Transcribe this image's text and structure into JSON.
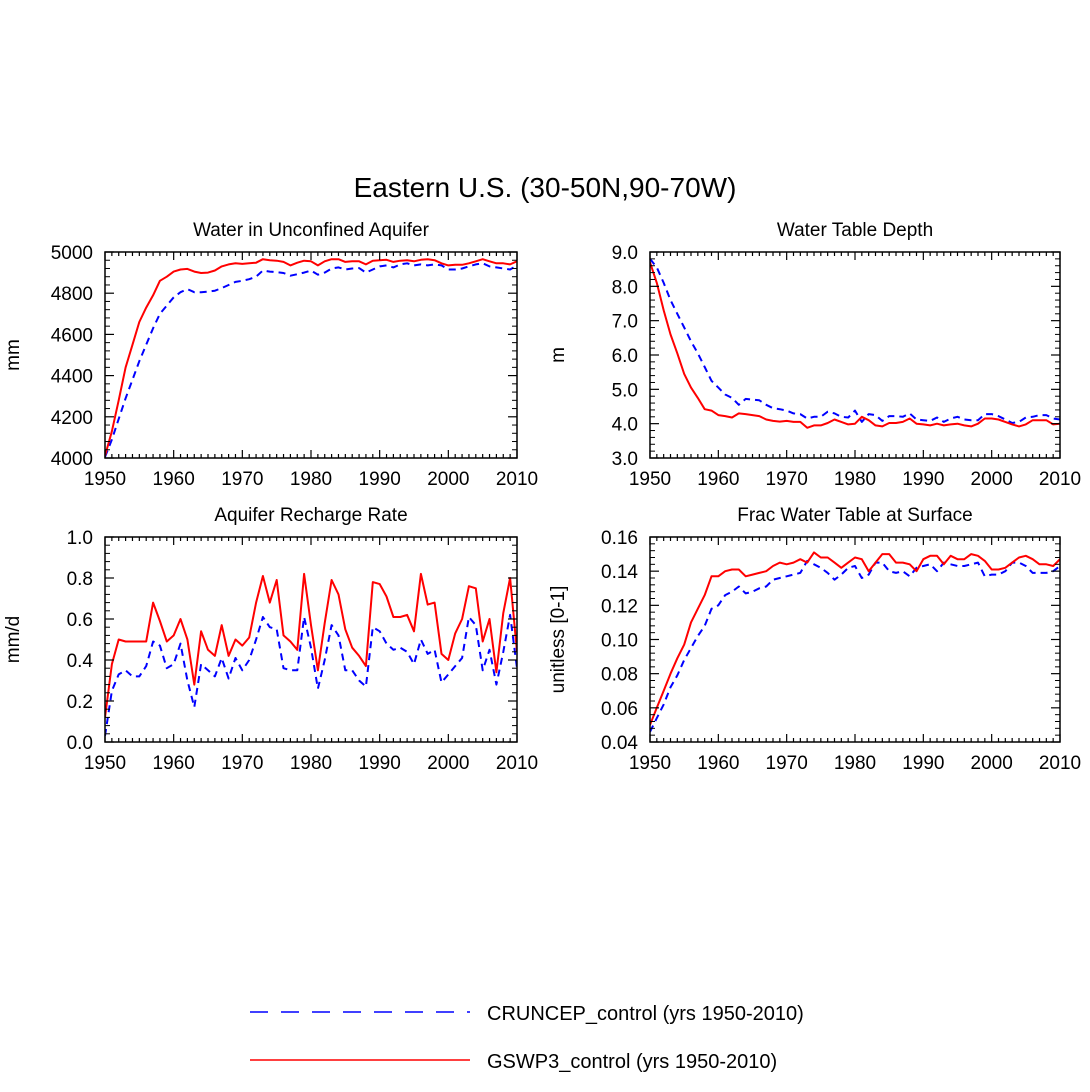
{
  "page_title": "Eastern U.S. (30-50N,90-70W)",
  "legend": [
    {
      "label": "CRUNCEP_control (yrs 1950-2010)",
      "color": "#0000ff",
      "style": "dashed"
    },
    {
      "label": "GSWP3_control (yrs 1950-2010)",
      "color": "#ff0000",
      "style": "solid"
    }
  ],
  "chart_data": [
    {
      "type": "line",
      "title": "Water in Unconfined Aquifer",
      "ylabel": "mm",
      "xlim": [
        1950,
        2010
      ],
      "ylim": [
        4000,
        5000
      ],
      "xticks": [
        1950,
        1960,
        1970,
        1980,
        1990,
        2000,
        2010
      ],
      "yticks": [
        4000,
        4200,
        4400,
        4600,
        4800,
        5000
      ],
      "ytick_labels": [
        "4000",
        "4200",
        "4400",
        "4600",
        "4800",
        "5000"
      ],
      "series": [
        {
          "name": "CRUNCEP_control (yrs 1950-2010)",
          "color": "#0000ff",
          "dash": true,
          "values": [
            4005,
            4090,
            4190,
            4290,
            4380,
            4470,
            4550,
            4630,
            4700,
            4740,
            4780,
            4805,
            4820,
            4805,
            4805,
            4808,
            4812,
            4825,
            4840,
            4855,
            4860,
            4868,
            4880,
            4910,
            4905,
            4902,
            4898,
            4885,
            4892,
            4900,
            4910,
            4890,
            4900,
            4920,
            4925,
            4915,
            4920,
            4922,
            4900,
            4915,
            4930,
            4935,
            4925,
            4940,
            4945,
            4935,
            4940,
            4935,
            4940,
            4935,
            4915,
            4915,
            4920,
            4930,
            4940,
            4945,
            4930,
            4925,
            4920,
            4915,
            4935
          ]
        },
        {
          "name": "GSWP3_control (yrs 1950-2010)",
          "color": "#ff0000",
          "dash": false,
          "values": [
            4010,
            4130,
            4280,
            4440,
            4550,
            4660,
            4730,
            4790,
            4860,
            4880,
            4905,
            4915,
            4918,
            4905,
            4898,
            4900,
            4910,
            4930,
            4940,
            4945,
            4942,
            4945,
            4948,
            4965,
            4960,
            4958,
            4952,
            4935,
            4948,
            4958,
            4955,
            4935,
            4955,
            4965,
            4965,
            4952,
            4955,
            4955,
            4940,
            4958,
            4960,
            4962,
            4952,
            4958,
            4960,
            4955,
            4962,
            4965,
            4960,
            4945,
            4935,
            4938,
            4938,
            4945,
            4955,
            4965,
            4955,
            4945,
            4945,
            4940,
            4955
          ]
        }
      ]
    },
    {
      "type": "line",
      "title": "Water Table Depth",
      "ylabel": "m",
      "xlim": [
        1950,
        2010
      ],
      "ylim": [
        3.0,
        9.0
      ],
      "xticks": [
        1950,
        1960,
        1970,
        1980,
        1990,
        2000,
        2010
      ],
      "yticks": [
        3,
        4,
        5,
        6,
        7,
        8,
        9
      ],
      "ytick_labels": [
        "3.0",
        "4.0",
        "5.0",
        "6.0",
        "7.0",
        "8.0",
        "9.0"
      ],
      "series": [
        {
          "name": "CRUNCEP_control (yrs 1950-2010)",
          "color": "#0000ff",
          "dash": true,
          "values": [
            8.8,
            8.55,
            8.1,
            7.6,
            7.2,
            6.8,
            6.4,
            6.05,
            5.65,
            5.25,
            5.05,
            4.85,
            4.75,
            4.55,
            4.72,
            4.7,
            4.68,
            4.55,
            4.45,
            4.42,
            4.38,
            4.3,
            4.28,
            4.15,
            4.2,
            4.2,
            4.35,
            4.3,
            4.2,
            4.18,
            4.38,
            4.05,
            4.28,
            4.25,
            4.08,
            4.22,
            4.22,
            4.2,
            4.3,
            4.12,
            4.1,
            4.08,
            4.18,
            4.05,
            4.15,
            4.2,
            4.12,
            4.1,
            4.1,
            4.28,
            4.28,
            4.22,
            4.12,
            4.02,
            4.05,
            4.18,
            4.2,
            4.25,
            4.25,
            4.15,
            4.12
          ]
        },
        {
          "name": "GSWP3_control (yrs 1950-2010)",
          "color": "#ff0000",
          "dash": false,
          "values": [
            8.7,
            8.1,
            7.3,
            6.6,
            6.05,
            5.45,
            5.05,
            4.75,
            4.42,
            4.38,
            4.25,
            4.22,
            4.18,
            4.3,
            4.28,
            4.25,
            4.22,
            4.12,
            4.08,
            4.06,
            4.08,
            4.05,
            4.05,
            3.88,
            3.95,
            3.95,
            4.02,
            4.12,
            4.05,
            3.98,
            4.0,
            4.2,
            4.1,
            3.95,
            3.92,
            4.02,
            4.02,
            4.05,
            4.15,
            4.0,
            3.98,
            3.95,
            4.0,
            3.95,
            3.98,
            4.0,
            3.95,
            3.92,
            4.0,
            4.15,
            4.15,
            4.12,
            4.05,
            3.98,
            3.92,
            3.98,
            4.1,
            4.1,
            4.1,
            3.98,
            4.0
          ]
        }
      ]
    },
    {
      "type": "line",
      "title": "Aquifer Recharge Rate",
      "ylabel": "mm/d",
      "xlim": [
        1950,
        2010
      ],
      "ylim": [
        0.0,
        1.0
      ],
      "xticks": [
        1950,
        1960,
        1970,
        1980,
        1990,
        2000,
        2010
      ],
      "yticks": [
        0,
        0.2,
        0.4,
        0.6,
        0.8,
        1.0
      ],
      "ytick_labels": [
        "0.0",
        "0.2",
        "0.4",
        "0.6",
        "0.8",
        "1.0"
      ],
      "series": [
        {
          "name": "CRUNCEP_control (yrs 1950-2010)",
          "color": "#0000ff",
          "dash": true,
          "values": [
            0.03,
            0.25,
            0.33,
            0.35,
            0.32,
            0.32,
            0.37,
            0.49,
            0.47,
            0.36,
            0.38,
            0.48,
            0.3,
            0.17,
            0.38,
            0.35,
            0.32,
            0.41,
            0.31,
            0.41,
            0.35,
            0.4,
            0.5,
            0.61,
            0.56,
            0.55,
            0.36,
            0.35,
            0.35,
            0.61,
            0.46,
            0.26,
            0.4,
            0.57,
            0.52,
            0.35,
            0.35,
            0.3,
            0.27,
            0.56,
            0.54,
            0.48,
            0.45,
            0.46,
            0.44,
            0.38,
            0.5,
            0.43,
            0.45,
            0.29,
            0.33,
            0.37,
            0.41,
            0.61,
            0.57,
            0.35,
            0.45,
            0.28,
            0.44,
            0.62,
            0.36
          ]
        },
        {
          "name": "GSWP3_control (yrs 1950-2010)",
          "color": "#ff0000",
          "dash": false,
          "values": [
            0.12,
            0.38,
            0.5,
            0.49,
            0.49,
            0.49,
            0.49,
            0.68,
            0.59,
            0.49,
            0.52,
            0.6,
            0.5,
            0.28,
            0.54,
            0.45,
            0.42,
            0.57,
            0.42,
            0.5,
            0.47,
            0.51,
            0.68,
            0.81,
            0.68,
            0.79,
            0.52,
            0.49,
            0.45,
            0.82,
            0.57,
            0.35,
            0.58,
            0.79,
            0.72,
            0.55,
            0.46,
            0.42,
            0.37,
            0.78,
            0.77,
            0.71,
            0.61,
            0.61,
            0.62,
            0.54,
            0.82,
            0.67,
            0.68,
            0.43,
            0.4,
            0.53,
            0.6,
            0.76,
            0.75,
            0.49,
            0.6,
            0.34,
            0.63,
            0.8,
            0.44
          ]
        }
      ]
    },
    {
      "type": "line",
      "title": "Frac Water Table at Surface",
      "ylabel": "unitless [0-1]",
      "xlim": [
        1950,
        2010
      ],
      "ylim": [
        0.04,
        0.16
      ],
      "xticks": [
        1950,
        1960,
        1970,
        1980,
        1990,
        2000,
        2010
      ],
      "yticks": [
        0.04,
        0.06,
        0.08,
        0.1,
        0.12,
        0.14,
        0.16
      ],
      "ytick_labels": [
        "0.04",
        "0.06",
        "0.08",
        "0.10",
        "0.12",
        "0.14",
        "0.16"
      ],
      "series": [
        {
          "name": "CRUNCEP_control (yrs 1950-2010)",
          "color": "#0000ff",
          "dash": true,
          "values": [
            0.046,
            0.054,
            0.062,
            0.072,
            0.079,
            0.088,
            0.095,
            0.102,
            0.108,
            0.118,
            0.12,
            0.126,
            0.128,
            0.131,
            0.127,
            0.128,
            0.13,
            0.131,
            0.135,
            0.136,
            0.137,
            0.138,
            0.139,
            0.146,
            0.144,
            0.142,
            0.139,
            0.135,
            0.138,
            0.142,
            0.143,
            0.136,
            0.138,
            0.145,
            0.145,
            0.14,
            0.139,
            0.14,
            0.137,
            0.142,
            0.143,
            0.144,
            0.14,
            0.145,
            0.144,
            0.143,
            0.143,
            0.144,
            0.145,
            0.137,
            0.138,
            0.138,
            0.14,
            0.145,
            0.145,
            0.143,
            0.139,
            0.139,
            0.139,
            0.14,
            0.143
          ]
        },
        {
          "name": "GSWP3_control (yrs 1950-2010)",
          "color": "#ff0000",
          "dash": false,
          "values": [
            0.05,
            0.06,
            0.07,
            0.08,
            0.089,
            0.097,
            0.11,
            0.118,
            0.126,
            0.137,
            0.137,
            0.14,
            0.141,
            0.141,
            0.137,
            0.138,
            0.139,
            0.14,
            0.143,
            0.145,
            0.144,
            0.145,
            0.147,
            0.145,
            0.151,
            0.148,
            0.148,
            0.145,
            0.142,
            0.145,
            0.148,
            0.147,
            0.14,
            0.145,
            0.15,
            0.15,
            0.145,
            0.145,
            0.144,
            0.14,
            0.147,
            0.149,
            0.149,
            0.144,
            0.149,
            0.147,
            0.147,
            0.15,
            0.149,
            0.146,
            0.141,
            0.141,
            0.142,
            0.145,
            0.148,
            0.149,
            0.147,
            0.144,
            0.144,
            0.143,
            0.147
          ]
        }
      ]
    }
  ]
}
